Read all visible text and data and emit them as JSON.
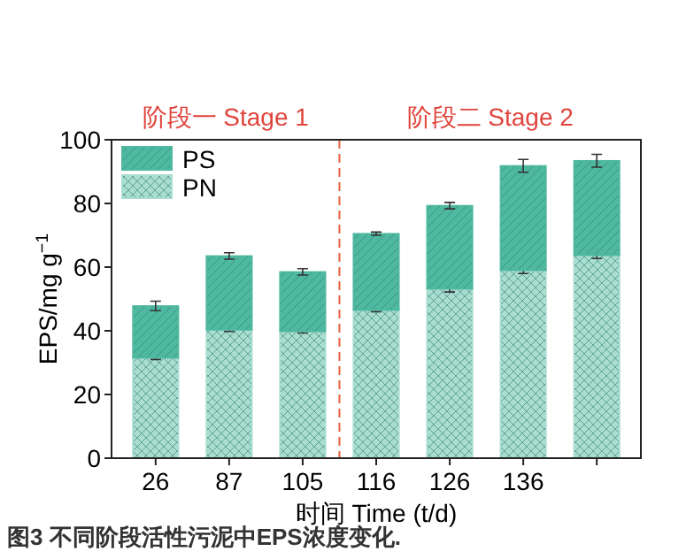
{
  "chart_data": {
    "type": "bar",
    "stacked": true,
    "categories": [
      "26",
      "87",
      "105",
      "116",
      "126",
      "136",
      null
    ],
    "ylim": [
      0,
      100
    ],
    "yticks": [
      0,
      20,
      40,
      60,
      80,
      100
    ],
    "xlabel": "时间 Time (t/d)",
    "ylabel": "EPS/mg g$^{−1}$",
    "series": [
      {
        "name": "PN",
        "color": "#a8ddd0",
        "values": [
          31.5,
          40.3,
          39.8,
          46.5,
          53.2,
          59,
          63.7
        ],
        "errors": [
          0.5,
          0.5,
          0.5,
          0.5,
          1,
          1,
          1
        ]
      },
      {
        "name": "PS",
        "color": "#4fb8a0",
        "values": [
          16.3,
          23.2,
          18.7,
          24.0,
          26.1,
          32.8,
          29.7
        ],
        "errors": [
          1.5,
          1,
          1,
          0.5,
          1,
          2,
          2
        ]
      }
    ],
    "annotations": [
      "阶段一 Stage 1",
      "阶段二 Stage 2",
      "图3 不同阶段活性污泥中EPS浓度变化."
    ],
    "legend": "top left"
  }
}
